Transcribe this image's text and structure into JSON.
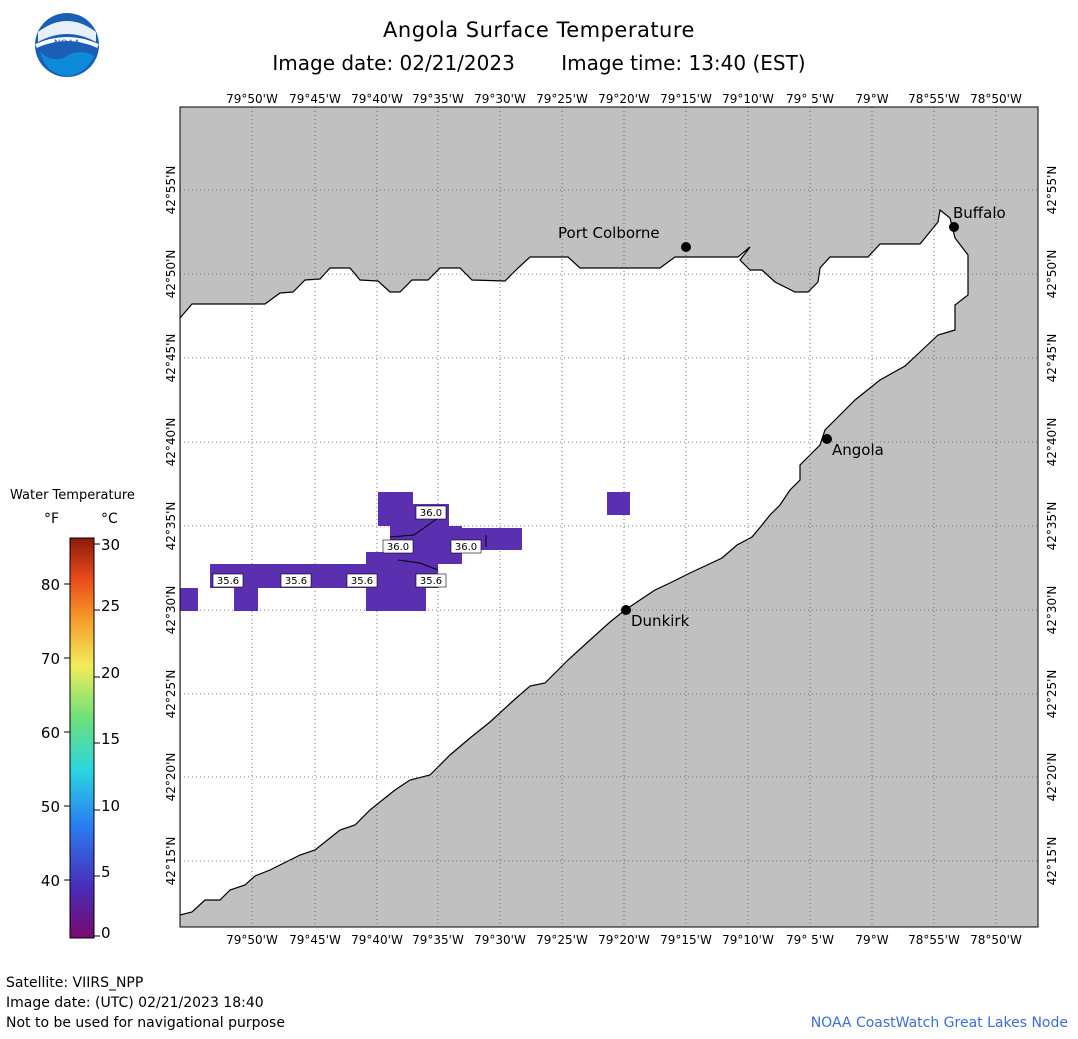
{
  "header": {
    "title": "Angola Surface Temperature",
    "image_date": "Image date: 02/21/2023",
    "image_time": "Image time: 13:40 (EST)"
  },
  "logo": {
    "text": "NOAA",
    "icon": "noaa-logo-icon"
  },
  "map": {
    "lon_ticks_top": [
      "79°50'W",
      "79°45'W",
      "79°40'W",
      "79°35'W",
      "79°30'W",
      "79°25'W",
      "79°20'W",
      "79°15'W",
      "79°10'W",
      "79° 5'W",
      "79°W",
      "78°55'W",
      "78°50'W"
    ],
    "lon_ticks_bottom": [
      "79°50'W",
      "79°45'W",
      "79°40'W",
      "79°35'W",
      "79°30'W",
      "79°25'W",
      "79°20'W",
      "79°15'W",
      "79°10'W",
      "79° 5'W",
      "79°W",
      "78°55'W",
      "78°50'W"
    ],
    "lat_ticks": [
      "42°55'N",
      "42°50'N",
      "42°45'N",
      "42°40'N",
      "42°35'N",
      "42°30'N",
      "42°25'N",
      "42°20'N",
      "42°15'N"
    ],
    "cities": [
      "Port Colborne",
      "Buffalo",
      "Angola",
      "Dunkirk"
    ],
    "isotherm_labels": [
      "36.0",
      "36.0",
      "36.0",
      "35.6",
      "35.6",
      "35.6",
      "35.6"
    ],
    "colors": {
      "land": "#c0c0c0",
      "water": "#ffffff",
      "cold_pixel": "#5a2fb0"
    }
  },
  "colorbar": {
    "title": "Water Temperature",
    "unit_f": "°F",
    "unit_c": "°C",
    "f_ticks": [
      "80",
      "70",
      "60",
      "50",
      "40"
    ],
    "c_ticks": [
      "30",
      "25",
      "20",
      "15",
      "10",
      "5",
      "0"
    ],
    "f_range": [
      32,
      86
    ],
    "c_range": [
      0,
      30
    ],
    "gradient_stops": [
      "#7a0a6e",
      "#4a2ab5",
      "#2a7cf0",
      "#2ad6e0",
      "#6de07a",
      "#f2ec5a",
      "#f59a2a",
      "#e84a1a",
      "#8a1a0a"
    ]
  },
  "footer": {
    "satellite": "Satellite: VIIRS_NPP",
    "utc_date": "Image date: (UTC) 02/21/2023  18:40",
    "disclaimer": "Not to be used for navigational purpose",
    "credit": "NOAA CoastWatch Great Lakes Node"
  }
}
